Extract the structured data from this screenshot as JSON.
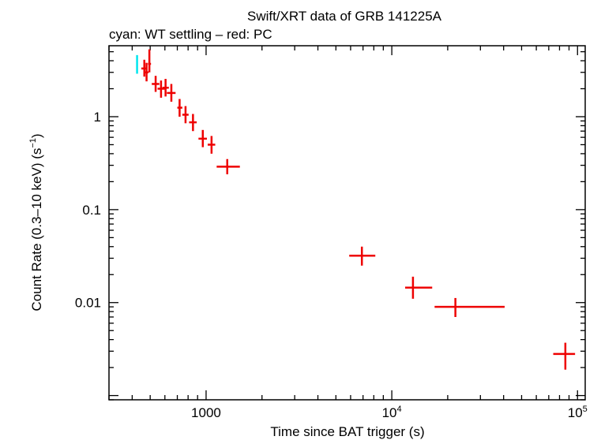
{
  "chart_data": {
    "type": "scatter",
    "title": "Swift/XRT data of GRB 141225A",
    "subtitle": "cyan: WT settling – red: PC",
    "xlabel": "Time since BAT trigger (s)",
    "ylabel_main": "Count Rate (0.3–10 keV) (s",
    "ylabel_sup": "−1",
    "ylabel_close": ")",
    "xscale": "log",
    "yscale": "log",
    "xlim": [
      300,
      110000
    ],
    "ylim": [
      0.0009,
      5.8
    ],
    "x_ticks": [
      {
        "value": 1000,
        "label": "1000",
        "sup": ""
      },
      {
        "value": 10000,
        "label": "10",
        "sup": "4"
      },
      {
        "value": 100000,
        "label": "10",
        "sup": "5"
      }
    ],
    "y_ticks": [
      {
        "value": 1,
        "label": "1"
      },
      {
        "value": 0.1,
        "label": "0.1"
      },
      {
        "value": 0.01,
        "label": "0.01"
      }
    ],
    "colors": {
      "wt": "#00e5ee",
      "pc": "#ee0000"
    },
    "series": [
      {
        "name": "WT settling",
        "color": "#00e5ee",
        "points": [
          {
            "x": 425,
            "xlo": 425,
            "xhi": 425,
            "y": 3.6,
            "ylo": 2.9,
            "yhi": 4.6
          }
        ]
      },
      {
        "name": "PC",
        "color": "#ee0000",
        "points": [
          {
            "x": 465,
            "xlo": 448,
            "xhi": 480,
            "y": 3.3,
            "ylo": 2.7,
            "yhi": 4.1
          },
          {
            "x": 478,
            "xlo": 470,
            "xhi": 490,
            "y": 3.0,
            "ylo": 2.4,
            "yhi": 3.8
          },
          {
            "x": 495,
            "xlo": 487,
            "xhi": 505,
            "y": 3.7,
            "ylo": 3.0,
            "yhi": 5.3
          },
          {
            "x": 535,
            "xlo": 510,
            "xhi": 560,
            "y": 2.25,
            "ylo": 1.85,
            "yhi": 2.75
          },
          {
            "x": 572,
            "xlo": 548,
            "xhi": 598,
            "y": 2.0,
            "ylo": 1.6,
            "yhi": 2.45
          },
          {
            "x": 605,
            "xlo": 582,
            "xhi": 630,
            "y": 2.05,
            "ylo": 1.65,
            "yhi": 2.55
          },
          {
            "x": 650,
            "xlo": 615,
            "xhi": 685,
            "y": 1.8,
            "ylo": 1.45,
            "yhi": 2.25
          },
          {
            "x": 720,
            "xlo": 700,
            "xhi": 745,
            "y": 1.25,
            "ylo": 1.0,
            "yhi": 1.55
          },
          {
            "x": 775,
            "xlo": 745,
            "xhi": 805,
            "y": 1.05,
            "ylo": 0.85,
            "yhi": 1.3
          },
          {
            "x": 850,
            "xlo": 810,
            "xhi": 890,
            "y": 0.87,
            "ylo": 0.7,
            "yhi": 1.07
          },
          {
            "x": 960,
            "xlo": 910,
            "xhi": 1010,
            "y": 0.58,
            "ylo": 0.47,
            "yhi": 0.72
          },
          {
            "x": 1070,
            "xlo": 1020,
            "xhi": 1120,
            "y": 0.5,
            "ylo": 0.4,
            "yhi": 0.62
          },
          {
            "x": 1300,
            "xlo": 1140,
            "xhi": 1520,
            "y": 0.29,
            "ylo": 0.24,
            "yhi": 0.35
          },
          {
            "x": 6900,
            "xlo": 5900,
            "xhi": 8150,
            "y": 0.032,
            "ylo": 0.025,
            "yhi": 0.04
          },
          {
            "x": 13000,
            "xlo": 11800,
            "xhi": 16500,
            "y": 0.0145,
            "ylo": 0.011,
            "yhi": 0.019
          },
          {
            "x": 22000,
            "xlo": 17000,
            "xhi": 40500,
            "y": 0.009,
            "ylo": 0.007,
            "yhi": 0.0112
          },
          {
            "x": 86000,
            "xlo": 74000,
            "xhi": 97000,
            "y": 0.0028,
            "ylo": 0.0019,
            "yhi": 0.0037
          }
        ]
      }
    ],
    "grid": false
  }
}
